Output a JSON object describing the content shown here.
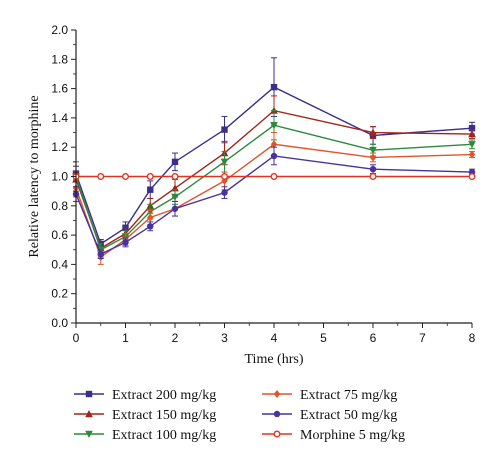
{
  "chart_data": {
    "type": "line",
    "xlabel": "Time (hrs)",
    "ylabel": "Relative latency to morphine",
    "xlim": [
      0,
      8
    ],
    "ylim": [
      0,
      2.0
    ],
    "xticks": [
      "0",
      "1",
      "2",
      "3",
      "4",
      "5",
      "6",
      "7",
      "8"
    ],
    "yticks": [
      "0.0",
      "0.2",
      "0.4",
      "0.6",
      "0.8",
      "1.0",
      "1.2",
      "1.4",
      "1.6",
      "1.8",
      "2.0"
    ],
    "grid": false,
    "legend_position": "bottom",
    "x": [
      0,
      0.5,
      1,
      1.5,
      2,
      3,
      4,
      6,
      8
    ],
    "series": [
      {
        "name": "Extract 200 mg/kg",
        "color": "#3a2f8a",
        "marker": "square",
        "values": [
          1.02,
          0.54,
          0.65,
          0.91,
          1.1,
          1.32,
          1.61,
          1.28,
          1.33
        ],
        "errors": [
          0.05,
          0.03,
          0.04,
          0.06,
          0.06,
          0.09,
          0.2,
          0.06,
          0.04
        ]
      },
      {
        "name": "Extract 150 mg/kg",
        "color": "#a3241a",
        "marker": "triangle-up",
        "values": [
          0.98,
          0.51,
          0.61,
          0.8,
          0.92,
          1.16,
          1.45,
          1.3,
          1.29
        ],
        "errors": [
          0.05,
          0.03,
          0.04,
          0.05,
          0.06,
          0.08,
          0.1,
          0.04,
          0.03
        ]
      },
      {
        "name": "Extract 100 mg/kg",
        "color": "#2c8a3c",
        "marker": "triangle-down",
        "values": [
          1.0,
          0.5,
          0.59,
          0.76,
          0.86,
          1.1,
          1.35,
          1.18,
          1.22
        ],
        "errors": [
          0.1,
          0.04,
          0.04,
          0.05,
          0.05,
          0.07,
          0.1,
          0.04,
          0.03
        ]
      },
      {
        "name": "Extract 75 mg/kg",
        "color": "#e0562a",
        "marker": "diamond",
        "values": [
          0.92,
          0.45,
          0.57,
          0.72,
          0.78,
          0.97,
          1.22,
          1.13,
          1.15
        ],
        "errors": [
          0.06,
          0.05,
          0.04,
          0.05,
          0.05,
          0.06,
          0.08,
          0.03,
          0.02
        ]
      },
      {
        "name": "Extract 50 mg/kg",
        "color": "#4632a0",
        "marker": "circle",
        "values": [
          0.88,
          0.47,
          0.55,
          0.66,
          0.78,
          0.89,
          1.14,
          1.05,
          1.03
        ],
        "errors": [
          0.05,
          0.03,
          0.03,
          0.03,
          0.05,
          0.04,
          0.06,
          0.03,
          0.02
        ]
      },
      {
        "name": "Morphine 5 mg/kg",
        "color": "#e2321e",
        "marker": "open-circle",
        "values": [
          1.0,
          1.0,
          1.0,
          1.0,
          1.0,
          1.0,
          1.0,
          1.0,
          1.0
        ],
        "errors": [
          0,
          0,
          0,
          0,
          0,
          0,
          0,
          0,
          0
        ]
      }
    ]
  }
}
